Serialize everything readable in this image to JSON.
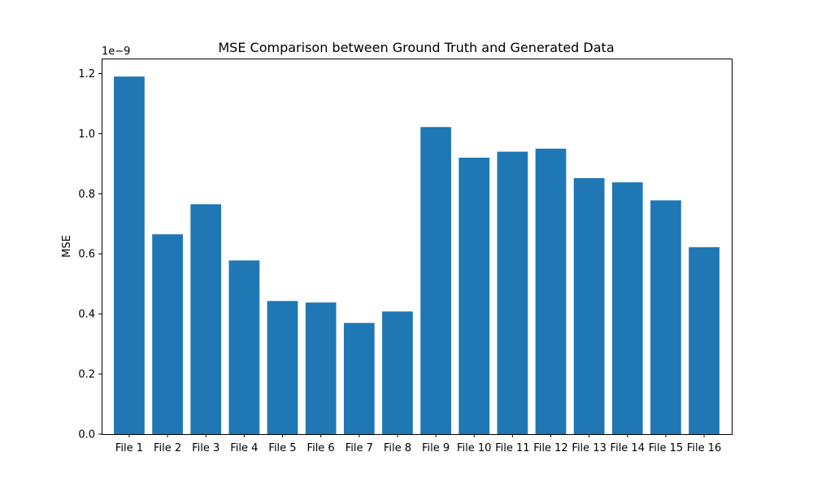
{
  "chart_data": {
    "type": "bar",
    "title": "MSE Comparison between Ground Truth and Generated Data",
    "xlabel": "",
    "ylabel": "MSE",
    "y_offset_text": "1e−9",
    "y_scale_factor": 1e-09,
    "categories": [
      "File 1",
      "File 2",
      "File 3",
      "File 4",
      "File 5",
      "File 6",
      "File 7",
      "File 8",
      "File 9",
      "File 10",
      "File 11",
      "File 12",
      "File 13",
      "File 14",
      "File 15",
      "File 16"
    ],
    "values": [
      1.19e-09,
      6.65e-10,
      7.65e-10,
      5.78e-10,
      4.43e-10,
      4.38e-10,
      3.7e-10,
      4.08e-10,
      1.022e-09,
      9.2e-10,
      9.4e-10,
      9.5e-10,
      8.52e-10,
      8.38e-10,
      7.78e-10,
      6.22e-10
    ],
    "ylim": [
      0,
      1.25e-09
    ],
    "yticks": [
      0,
      2e-10,
      4e-10,
      6e-10,
      8e-10,
      1e-09,
      1.2e-09
    ],
    "ytick_labels": [
      "0.0",
      "0.2",
      "0.4",
      "0.6",
      "0.8",
      "1.0",
      "1.2"
    ],
    "bar_color": "#1f77b4",
    "grid": false,
    "legend": "none"
  }
}
